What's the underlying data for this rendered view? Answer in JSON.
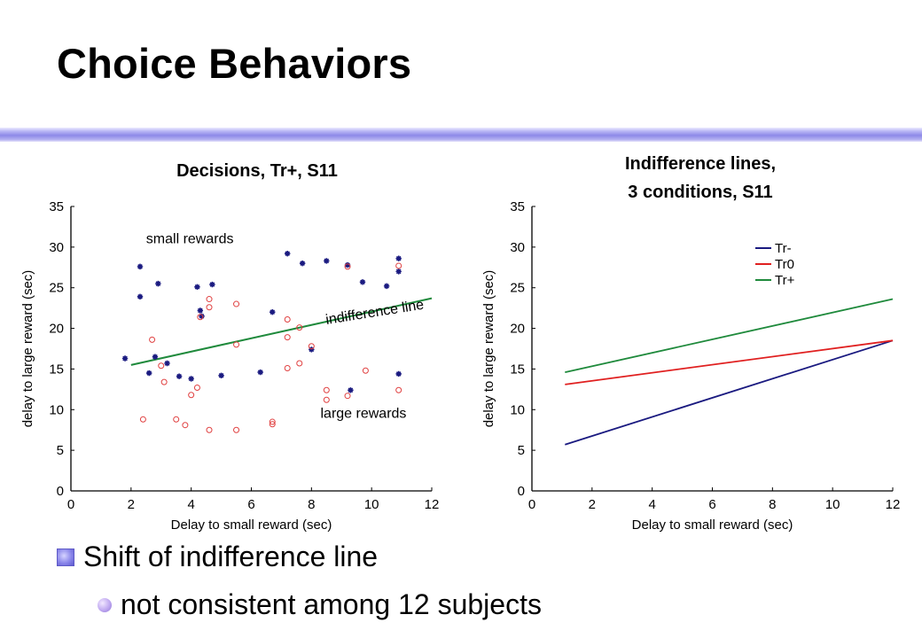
{
  "slide": {
    "title": "Choice Behaviors",
    "bullets": [
      {
        "level": 1,
        "icon": "square-bullet-icon",
        "text": "Shift of indifference line"
      },
      {
        "level": 2,
        "icon": "circle-bullet-icon",
        "text": "not consistent among 12 subjects"
      }
    ]
  },
  "chart_data": [
    {
      "type": "scatter",
      "title": "Decisions, Tr+, S11",
      "xlabel": "Delay to small reward (sec)",
      "ylabel": "delay to large reward (sec)",
      "xlim": [
        0,
        12
      ],
      "ylim": [
        0,
        35
      ],
      "xticks": [
        0,
        2,
        4,
        6,
        8,
        10,
        12
      ],
      "yticks": [
        0,
        5,
        10,
        15,
        20,
        25,
        30,
        35
      ],
      "grid": false,
      "annotations": [
        {
          "text": "small rewards",
          "x": 2.5,
          "y": 30.5
        },
        {
          "text": "indifference line",
          "x": 8.5,
          "y": 20.5,
          "angle": -9
        },
        {
          "text": "large rewards",
          "x": 8.3,
          "y": 9.0
        }
      ],
      "indifference_line": {
        "color": "#1f8a3c",
        "x": [
          2.0,
          12.0
        ],
        "y": [
          15.5,
          23.7
        ]
      },
      "series": [
        {
          "marker": "star",
          "color": "#1a1a80",
          "points": [
            [
              1.8,
              16.3
            ],
            [
              2.3,
              27.6
            ],
            [
              2.3,
              23.9
            ],
            [
              2.6,
              14.5
            ],
            [
              2.8,
              16.5
            ],
            [
              2.9,
              25.5
            ],
            [
              3.2,
              15.7
            ],
            [
              3.6,
              14.1
            ],
            [
              4.0,
              13.8
            ],
            [
              4.2,
              25.1
            ],
            [
              4.3,
              22.2
            ],
            [
              4.35,
              21.5
            ],
            [
              4.7,
              25.4
            ],
            [
              5.0,
              14.2
            ],
            [
              6.3,
              14.6
            ],
            [
              6.7,
              22.0
            ],
            [
              7.2,
              29.2
            ],
            [
              7.7,
              28.0
            ],
            [
              8.0,
              17.4
            ],
            [
              8.5,
              28.3
            ],
            [
              9.2,
              27.8
            ],
            [
              9.3,
              12.4
            ],
            [
              9.7,
              25.7
            ],
            [
              10.5,
              25.2
            ],
            [
              10.9,
              28.6
            ],
            [
              10.9,
              27.0
            ],
            [
              10.9,
              14.4
            ]
          ]
        },
        {
          "marker": "circle",
          "color": "#e04040",
          "points": [
            [
              2.4,
              8.8
            ],
            [
              2.7,
              18.6
            ],
            [
              3.0,
              15.4
            ],
            [
              3.1,
              13.4
            ],
            [
              3.5,
              8.8
            ],
            [
              3.8,
              8.1
            ],
            [
              4.0,
              11.8
            ],
            [
              4.2,
              12.7
            ],
            [
              4.3,
              21.4
            ],
            [
              4.6,
              22.6
            ],
            [
              4.6,
              23.6
            ],
            [
              4.6,
              7.5
            ],
            [
              5.5,
              23.0
            ],
            [
              5.5,
              18.0
            ],
            [
              5.5,
              7.5
            ],
            [
              6.7,
              8.2
            ],
            [
              6.7,
              8.5
            ],
            [
              7.2,
              21.1
            ],
            [
              7.2,
              18.9
            ],
            [
              7.2,
              15.1
            ],
            [
              7.6,
              15.7
            ],
            [
              7.6,
              20.1
            ],
            [
              8.0,
              17.8
            ],
            [
              8.5,
              12.4
            ],
            [
              8.5,
              11.2
            ],
            [
              9.2,
              27.6
            ],
            [
              9.2,
              11.7
            ],
            [
              9.8,
              14.8
            ],
            [
              10.9,
              27.7
            ],
            [
              10.9,
              12.4
            ]
          ]
        }
      ]
    },
    {
      "type": "line",
      "title": "Indifference lines,\n3 conditions, S11",
      "xlabel": "Delay to small reward (sec)",
      "ylabel": "delay to large reward (sec)",
      "xlim": [
        0,
        12
      ],
      "ylim": [
        0,
        35
      ],
      "xticks": [
        0,
        2,
        4,
        6,
        8,
        10,
        12
      ],
      "yticks": [
        0,
        5,
        10,
        15,
        20,
        25,
        30,
        35
      ],
      "grid": false,
      "legend_position": "upper-right",
      "series": [
        {
          "name": "Tr-",
          "color": "#1a1a80",
          "x": [
            1.1,
            12.0
          ],
          "y": [
            5.7,
            18.5
          ]
        },
        {
          "name": "Tr0",
          "color": "#e02020",
          "x": [
            1.1,
            12.0
          ],
          "y": [
            13.1,
            18.5
          ]
        },
        {
          "name": "Tr+",
          "color": "#1f8a3c",
          "x": [
            1.1,
            12.0
          ],
          "y": [
            14.6,
            23.6
          ]
        }
      ]
    }
  ]
}
